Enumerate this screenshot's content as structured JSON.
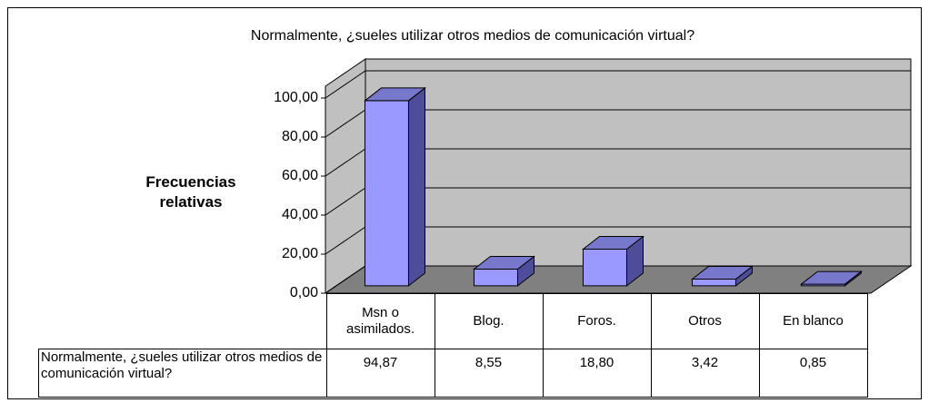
{
  "chart_data": {
    "type": "bar3d",
    "title": "Normalmente, ¿sueles utilizar otros medios de comunicación virtual?",
    "y_label": "Frecuencias relativas",
    "categories": [
      "Msn o asimilados.",
      "Blog.",
      "Foros.",
      "Otros",
      "En blanco"
    ],
    "series": [
      {
        "name": "Normalmente, ¿sueles utilizar otros medios de comunicación virtual?",
        "color": "#9999ff",
        "values": [
          94.87,
          8.55,
          18.8,
          3.42,
          0.85
        ],
        "value_labels": [
          "94,87",
          "8,55",
          "18,80",
          "3,42",
          "0,85"
        ]
      }
    ],
    "ylim": [
      0,
      100
    ],
    "yticks": [
      {
        "value": 0,
        "label": "0,00"
      },
      {
        "value": 20,
        "label": "20,00"
      },
      {
        "value": 40,
        "label": "40,00"
      },
      {
        "value": 60,
        "label": "60,00"
      },
      {
        "value": 80,
        "label": "80,00"
      },
      {
        "value": 100,
        "label": "100,00"
      }
    ],
    "grid": true,
    "data_table": true
  }
}
